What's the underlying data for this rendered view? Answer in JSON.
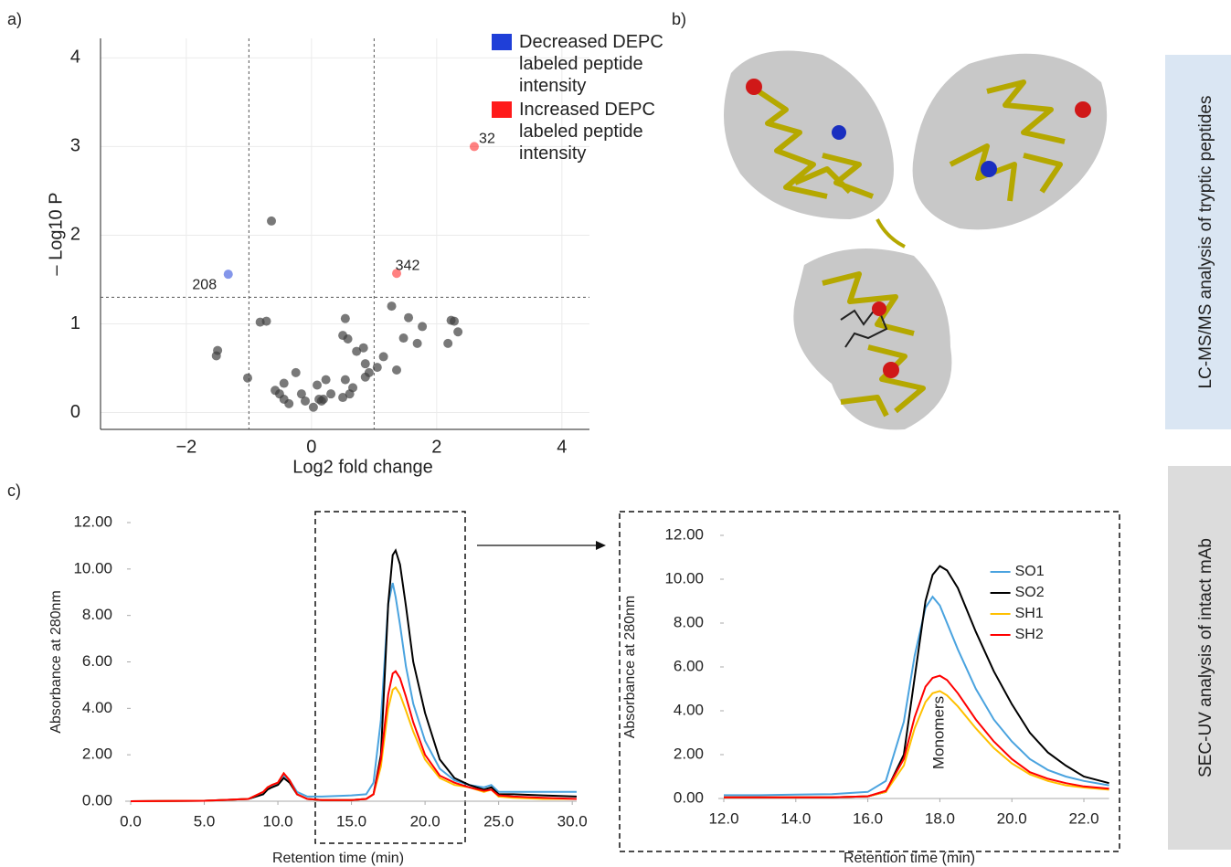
{
  "panel_labels": [
    "a)",
    "b)",
    "c)"
  ],
  "side_labels": [
    "LC-MS/MS analysis of tryptic peptides",
    "SEC-UV analysis of intact mAb"
  ],
  "chart_data": [
    {
      "type": "scatter",
      "x_label": "Log2 fold change",
      "y_label": "– Log10 P",
      "xlim": [
        -3.37,
        4.44
      ],
      "ylim": [
        -0.19,
        4.22
      ],
      "xticks": [
        {
          "value": -2,
          "label": "−2"
        },
        0,
        2,
        4
      ],
      "yticks": [
        0,
        1,
        2,
        3,
        4
      ],
      "grid": true,
      "legend": "top-right",
      "thresholds": {
        "x": [
          -1,
          1
        ],
        "y": 1.3
      },
      "series": [
        {
          "color": "#404040",
          "x": [
            -0.64,
            -1.5,
            -1.52,
            -1.02,
            -0.82,
            -0.72,
            -0.58,
            -0.51,
            -0.44,
            -0.44,
            -0.36,
            -0.25,
            -0.16,
            -0.1,
            0.03,
            0.09,
            0.12,
            0.16,
            0.23,
            0.31,
            0.5,
            0.54,
            0.61,
            0.66,
            0.5,
            0.54,
            0.58,
            0.72,
            0.83,
            0.86,
            0.92,
            1.05,
            1.15,
            1.28,
            1.36,
            1.47,
            1.55,
            1.69,
            1.77,
            2.18,
            2.23,
            2.28,
            2.34,
            0.86,
            0.19
          ],
          "values": [
            2.16,
            0.7,
            0.64,
            0.39,
            1.02,
            1.03,
            0.25,
            0.21,
            0.33,
            0.15,
            0.1,
            0.45,
            0.21,
            0.13,
            0.06,
            0.31,
            0.15,
            0.13,
            0.37,
            0.21,
            0.17,
            0.37,
            0.21,
            0.28,
            0.87,
            1.06,
            0.83,
            0.69,
            0.73,
            0.55,
            0.45,
            0.51,
            0.63,
            1.2,
            0.48,
            0.84,
            1.07,
            0.78,
            0.97,
            0.78,
            1.04,
            1.03,
            0.91,
            0.4,
            0.15
          ]
        },
        {
          "name": "Decreased DEPC labeled peptide intensity",
          "color": "#1f3fd8",
          "x": [
            -1.33
          ],
          "values": [
            1.56
          ],
          "labels": [
            "208"
          ]
        },
        {
          "name": "Increased DEPC labeled peptide intensity",
          "color": "#ff1a1a",
          "x": [
            1.36,
            2.6
          ],
          "values": [
            1.57,
            3.0
          ],
          "labels": [
            "342",
            "32"
          ]
        }
      ]
    },
    {
      "type": "line",
      "x_label": "Retention time (min)",
      "y_label": "Absorbance at 280nm",
      "xlim": [
        0,
        30.3
      ],
      "ylim": [
        0,
        12
      ],
      "xticks": [
        {
          "value": 0,
          "label": "0.0"
        },
        {
          "value": 5,
          "label": "5.0"
        },
        {
          "value": 10,
          "label": "10.0"
        },
        {
          "value": 15,
          "label": "15.0"
        },
        {
          "value": 20,
          "label": "20.0"
        },
        {
          "value": 25,
          "label": "25.0"
        },
        {
          "value": 30,
          "label": "30.0"
        }
      ],
      "yticks": [
        {
          "value": 0,
          "label": "0.00"
        },
        {
          "value": 2,
          "label": "2.00"
        },
        {
          "value": 4,
          "label": "4.00"
        },
        {
          "value": 6,
          "label": "6.00"
        },
        {
          "value": 8,
          "label": "8.00"
        },
        {
          "value": 10,
          "label": "10.00"
        },
        {
          "value": 12,
          "label": "12.00"
        }
      ],
      "grid": false,
      "x": [
        0,
        5,
        8,
        9,
        9.3,
        9.6,
        10,
        10.4,
        10.8,
        11.3,
        12,
        13,
        15,
        16,
        16.5,
        17,
        17.5,
        17.8,
        18,
        18.3,
        18.7,
        19.2,
        20,
        21,
        22,
        23,
        24,
        24.5,
        25,
        26,
        28,
        30.3
      ],
      "series": [
        {
          "name": "SO1",
          "color": "#4aa3df",
          "values": [
            0,
            0.02,
            0.1,
            0.3,
            0.6,
            0.6,
            0.8,
            1.1,
            0.9,
            0.4,
            0.2,
            0.2,
            0.25,
            0.3,
            0.8,
            3.5,
            8.5,
            9.4,
            8.8,
            7.6,
            5.8,
            4.2,
            2.6,
            1.4,
            0.9,
            0.7,
            0.6,
            0.7,
            0.4,
            0.4,
            0.4,
            0.4
          ]
        },
        {
          "name": "SO2",
          "color": "#000000",
          "values": [
            0,
            0.02,
            0.1,
            0.3,
            0.5,
            0.6,
            0.7,
            1.0,
            0.8,
            0.3,
            0.1,
            0.05,
            0.05,
            0.1,
            0.3,
            2.0,
            8.5,
            10.6,
            10.8,
            10.2,
            8.4,
            6.0,
            3.8,
            1.8,
            1.0,
            0.7,
            0.5,
            0.6,
            0.3,
            0.3,
            0.25,
            0.2
          ]
        },
        {
          "name": "SH1",
          "color": "#ffc000",
          "values": [
            0,
            0.02,
            0.1,
            0.4,
            0.6,
            0.7,
            0.8,
            1.2,
            0.9,
            0.3,
            0.1,
            0.05,
            0.05,
            0.1,
            0.3,
            1.5,
            4.0,
            4.8,
            4.9,
            4.6,
            3.9,
            3.0,
            1.8,
            1.0,
            0.7,
            0.6,
            0.4,
            0.5,
            0.2,
            0.15,
            0.1,
            0.1
          ]
        },
        {
          "name": "SH2",
          "color": "#ff0000",
          "values": [
            0,
            0.02,
            0.1,
            0.4,
            0.6,
            0.7,
            0.8,
            1.2,
            0.9,
            0.3,
            0.1,
            0.05,
            0.05,
            0.1,
            0.3,
            1.8,
            4.6,
            5.5,
            5.6,
            5.3,
            4.5,
            3.4,
            2.0,
            1.1,
            0.8,
            0.6,
            0.45,
            0.5,
            0.25,
            0.2,
            0.15,
            0.1
          ]
        }
      ]
    },
    {
      "type": "line",
      "x_label": "Retention time (min)",
      "y_label": "Absorbance at 280nm",
      "annotation": "Monomers",
      "xlim": [
        12,
        22.7
      ],
      "ylim": [
        0,
        12
      ],
      "xticks": [
        {
          "value": 12,
          "label": "12.0"
        },
        {
          "value": 14,
          "label": "14.0"
        },
        {
          "value": 16,
          "label": "16.0"
        },
        {
          "value": 18,
          "label": "18.0"
        },
        {
          "value": 20,
          "label": "20.0"
        },
        {
          "value": 22,
          "label": "22.0"
        }
      ],
      "yticks": [
        {
          "value": 0,
          "label": "0.00"
        },
        {
          "value": 2,
          "label": "2.00"
        },
        {
          "value": 4,
          "label": "4.00"
        },
        {
          "value": 6,
          "label": "6.00"
        },
        {
          "value": 8,
          "label": "8.00"
        },
        {
          "value": 10,
          "label": "10.00"
        },
        {
          "value": 12,
          "label": "12.00"
        }
      ],
      "grid": false,
      "legend": "top-right",
      "x": [
        12,
        13,
        14,
        15,
        16,
        16.5,
        17,
        17.3,
        17.6,
        17.8,
        18,
        18.2,
        18.5,
        19,
        19.5,
        20,
        20.5,
        21,
        21.5,
        22,
        22.7
      ],
      "series": [
        {
          "name": "SO1",
          "color": "#4aa3df",
          "values": [
            0.15,
            0.15,
            0.18,
            0.2,
            0.3,
            0.8,
            3.5,
            6.5,
            8.7,
            9.2,
            8.8,
            8.0,
            6.8,
            5.0,
            3.6,
            2.6,
            1.8,
            1.3,
            1.0,
            0.8,
            0.6
          ]
        },
        {
          "name": "SO2",
          "color": "#000000",
          "values": [
            0.05,
            0.05,
            0.05,
            0.05,
            0.1,
            0.3,
            2.0,
            5.5,
            9.0,
            10.2,
            10.6,
            10.4,
            9.6,
            7.6,
            5.8,
            4.3,
            3.0,
            2.1,
            1.5,
            1.0,
            0.7
          ]
        },
        {
          "name": "SH1",
          "color": "#ffc000",
          "values": [
            0.05,
            0.05,
            0.05,
            0.05,
            0.1,
            0.3,
            1.5,
            3.2,
            4.4,
            4.8,
            4.9,
            4.7,
            4.2,
            3.2,
            2.3,
            1.6,
            1.1,
            0.8,
            0.6,
            0.5,
            0.4
          ]
        },
        {
          "name": "SH2",
          "color": "#ff0000",
          "values": [
            0.05,
            0.05,
            0.05,
            0.05,
            0.1,
            0.35,
            1.8,
            3.7,
            5.1,
            5.5,
            5.6,
            5.4,
            4.8,
            3.6,
            2.6,
            1.8,
            1.2,
            0.9,
            0.7,
            0.55,
            0.45
          ]
        }
      ]
    }
  ]
}
